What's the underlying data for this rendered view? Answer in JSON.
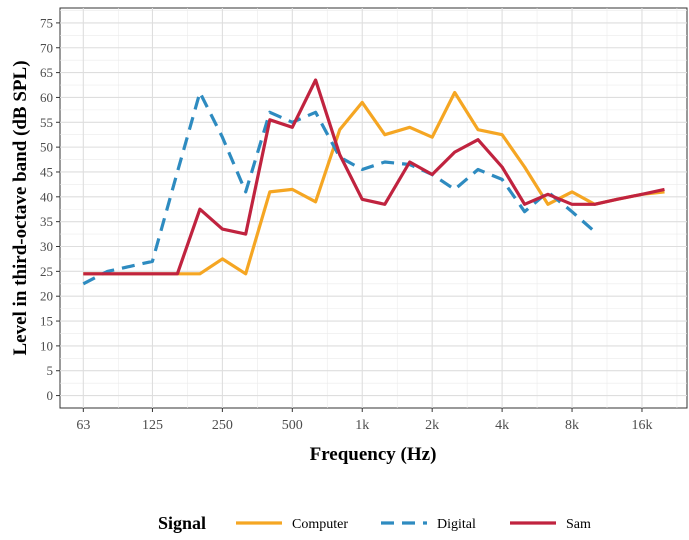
{
  "chart_data": {
    "type": "line",
    "title": "",
    "xlabel": "Frequency (Hz)",
    "ylabel": "Level in third-octave band (dB SPL)",
    "x_scale": "log2",
    "xlim": [
      50,
      25000
    ],
    "ylim": [
      -2.5,
      78
    ],
    "x_ticks": [
      63,
      125,
      250,
      500,
      1000,
      2000,
      4000,
      8000,
      16000
    ],
    "x_tick_labels": [
      "63",
      "125",
      "250",
      "500",
      "1k",
      "2k",
      "4k",
      "8k",
      "16k"
    ],
    "y_ticks": [
      0,
      5,
      10,
      15,
      20,
      25,
      30,
      35,
      40,
      45,
      50,
      55,
      60,
      65,
      70,
      75
    ],
    "y_tick_labels": [
      "0",
      "5",
      "10",
      "15",
      "20",
      "25",
      "30",
      "35",
      "40",
      "45",
      "50",
      "55",
      "60",
      "65",
      "70",
      "75"
    ],
    "grid": true,
    "legend": {
      "title": "Signal",
      "placement": "bottom"
    },
    "series": [
      {
        "name": "Computer",
        "color": "#F5A623",
        "dash": "solid",
        "x": [
          63,
          80,
          100,
          125,
          160,
          200,
          250,
          315,
          400,
          500,
          630,
          800,
          1000,
          1250,
          1600,
          2000,
          2500,
          3150,
          4000,
          5000,
          6300,
          8000,
          10000,
          12500,
          16000,
          20000
        ],
        "values": [
          24.5,
          24.5,
          24.5,
          24.5,
          24.5,
          24.5,
          27.5,
          24.5,
          41,
          41.5,
          39,
          53.5,
          59,
          52.5,
          54,
          52,
          61,
          53.5,
          52.5,
          46,
          38.5,
          41,
          38.5,
          39.5,
          40.5,
          41
        ]
      },
      {
        "name": "Digital",
        "color": "#2E8BC0",
        "dash": "dashed",
        "x": [
          63,
          80,
          100,
          125,
          160,
          200,
          250,
          315,
          400,
          500,
          630,
          800,
          1000,
          1250,
          1600,
          2000,
          2500,
          3150,
          4000,
          5000,
          6300,
          8000,
          10000
        ],
        "values": [
          22.5,
          25,
          26,
          27,
          45,
          61,
          52,
          41,
          57,
          55,
          57,
          48,
          45.5,
          47,
          46.5,
          44.5,
          41.5,
          45.5,
          43.5,
          37,
          41,
          37,
          33
        ]
      },
      {
        "name": "Sam",
        "color": "#C0233F",
        "dash": "solid",
        "x": [
          63,
          80,
          100,
          125,
          160,
          200,
          250,
          315,
          400,
          500,
          630,
          800,
          1000,
          1250,
          1600,
          2000,
          2500,
          3150,
          4000,
          5000,
          6300,
          8000,
          10000,
          12500,
          16000,
          20000
        ],
        "values": [
          24.5,
          24.5,
          24.5,
          24.5,
          24.5,
          37.5,
          33.5,
          32.5,
          55.5,
          54,
          63.5,
          48.5,
          39.5,
          38.5,
          47,
          44.5,
          49,
          51.5,
          46,
          38.5,
          40.5,
          38.5,
          38.5,
          39.5,
          40.5,
          41.5
        ]
      }
    ]
  }
}
